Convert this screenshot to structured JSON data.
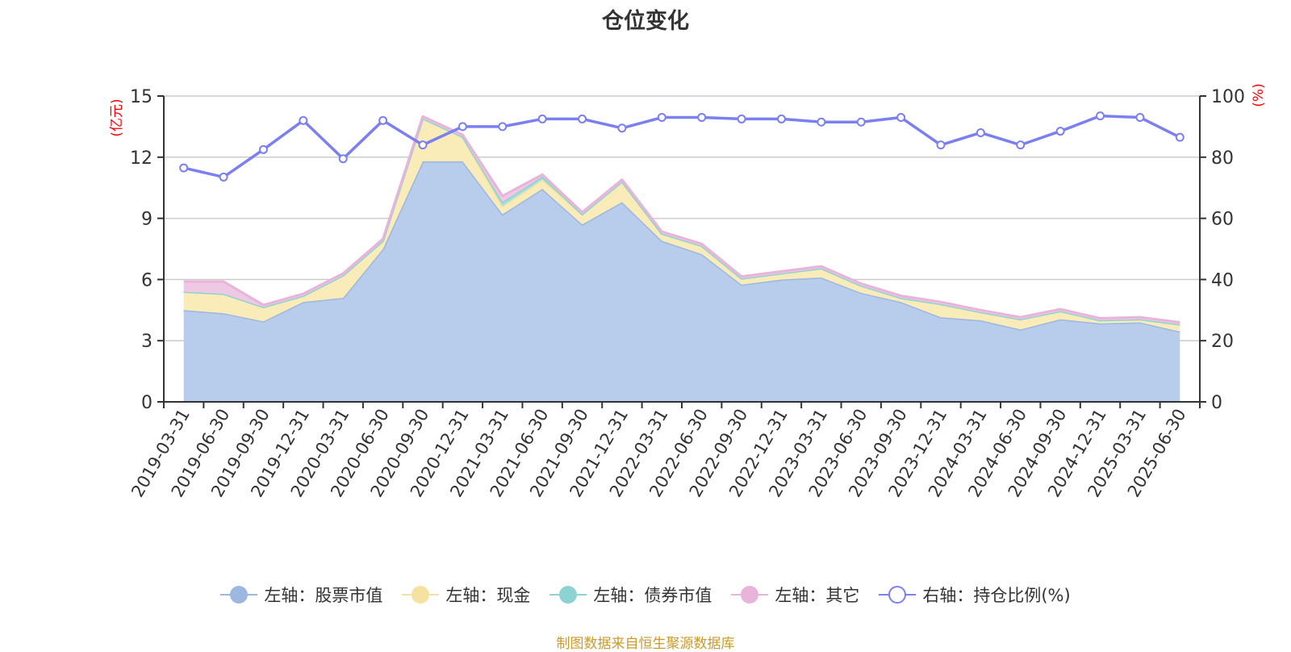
{
  "chart_data": {
    "type": "area",
    "title": "仓位变化",
    "left_axis_label": "(亿元)",
    "right_axis_label": "(%)",
    "left_ylim": [
      0,
      15
    ],
    "left_ticks": [
      0,
      3,
      6,
      9,
      12,
      15
    ],
    "right_ylim": [
      0,
      100
    ],
    "right_ticks": [
      0,
      20,
      40,
      60,
      80,
      100
    ],
    "grid": true,
    "legend_position": "bottom",
    "categories": [
      "2019-03-31",
      "2019-06-30",
      "2019-09-30",
      "2019-12-31",
      "2020-03-31",
      "2020-06-30",
      "2020-09-30",
      "2020-12-31",
      "2021-03-31",
      "2021-06-30",
      "2021-09-30",
      "2021-12-31",
      "2022-03-31",
      "2022-06-30",
      "2022-09-30",
      "2022-12-31",
      "2023-03-31",
      "2023-06-30",
      "2023-09-30",
      "2023-12-31",
      "2024-03-31",
      "2024-06-30",
      "2024-09-30",
      "2024-12-31",
      "2025-03-31",
      "2025-06-30"
    ],
    "series": [
      {
        "name": "左轴：股票市值",
        "axis": "left",
        "kind": "stacked-area",
        "color": "#9db7e0",
        "fill": "#b8cceb",
        "values": [
          4.5,
          4.35,
          3.95,
          4.9,
          5.1,
          7.5,
          11.8,
          11.8,
          9.2,
          10.45,
          8.7,
          9.8,
          7.9,
          7.25,
          5.75,
          6.0,
          6.1,
          5.35,
          4.9,
          4.15,
          4.0,
          3.55,
          4.05,
          3.85,
          3.9,
          3.45
        ]
      },
      {
        "name": "左轴：现金",
        "axis": "left",
        "kind": "stacked-area",
        "color": "#f5e2a0",
        "fill": "#f9ecb9",
        "values": [
          0.9,
          0.95,
          0.7,
          0.3,
          1.1,
          0.4,
          2.1,
          1.2,
          0.4,
          0.45,
          0.5,
          1.0,
          0.35,
          0.4,
          0.3,
          0.3,
          0.45,
          0.35,
          0.2,
          0.65,
          0.4,
          0.5,
          0.4,
          0.15,
          0.15,
          0.35
        ]
      },
      {
        "name": "左轴：债券市值",
        "axis": "left",
        "kind": "stacked-area",
        "color": "#8ed3d3",
        "fill": "#a6dede",
        "values": [
          0,
          0,
          0,
          0,
          0,
          0,
          0,
          0,
          0.2,
          0.15,
          0,
          0,
          0,
          0,
          0,
          0,
          0,
          0,
          0,
          0,
          0,
          0,
          0,
          0,
          0,
          0
        ]
      },
      {
        "name": "左轴：其它",
        "axis": "left",
        "kind": "stacked-area",
        "color": "#e8b4da",
        "fill": "#efc8e4",
        "values": [
          0.5,
          0.6,
          0.1,
          0.1,
          0.1,
          0.1,
          0.1,
          0.1,
          0.3,
          0.1,
          0.1,
          0.1,
          0.1,
          0.1,
          0.1,
          0.1,
          0.1,
          0.1,
          0.1,
          0.1,
          0.1,
          0.1,
          0.1,
          0.1,
          0.1,
          0.1
        ]
      },
      {
        "name": "右轴：持仓比例(%)",
        "axis": "right",
        "kind": "line",
        "color": "#7b7ff0",
        "values": [
          76.5,
          73.5,
          82.5,
          92.0,
          79.5,
          92.0,
          84.0,
          90.0,
          90.0,
          92.5,
          92.5,
          89.5,
          93.0,
          93.0,
          92.5,
          92.5,
          91.5,
          91.5,
          93.0,
          84.0,
          88.0,
          84.0,
          88.5,
          93.5,
          93.0,
          86.5
        ]
      }
    ]
  },
  "source_note": "制图数据来自恒生聚源数据库",
  "colors": {
    "left_axis_label": "#ff0000",
    "right_axis_label": "#ff0000",
    "axis": "#333333",
    "grid": "#cccccc",
    "source_note": "#cc9a2a"
  }
}
